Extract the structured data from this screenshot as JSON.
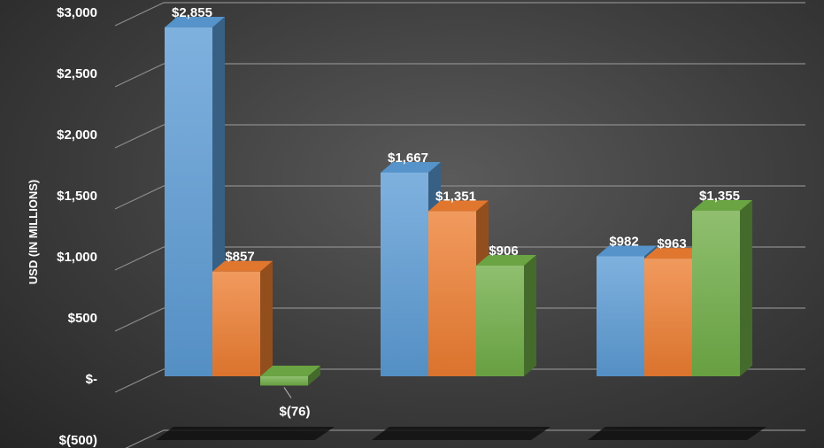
{
  "chart_data": {
    "type": "bar",
    "style": "3d-clustered-column",
    "categories": [
      "",
      "",
      ""
    ],
    "series": [
      {
        "color": "#5b9bd5",
        "values": [
          2855,
          1667,
          982
        ]
      },
      {
        "color": "#ed7d31",
        "values": [
          857,
          1351,
          963
        ]
      },
      {
        "color": "#70ad47",
        "values": [
          -76,
          906,
          1355
        ]
      }
    ],
    "data_labels": [
      [
        "$2,855",
        "$1,667",
        "$982"
      ],
      [
        "$857",
        "$1,351",
        "$963"
      ],
      [
        "$(76)",
        "$906",
        "$1,355"
      ]
    ],
    "y_ticks": [
      {
        "value": -500,
        "label": "$(500)"
      },
      {
        "value": 0,
        "label": "$-"
      },
      {
        "value": 500,
        "label": "$500"
      },
      {
        "value": 1000,
        "label": "$1,000"
      },
      {
        "value": 1500,
        "label": "$1,500"
      },
      {
        "value": 2000,
        "label": "$2,000"
      },
      {
        "value": 2500,
        "label": "$2,500"
      },
      {
        "value": 3000,
        "label": "$3,000"
      }
    ],
    "ylabel": "USD (IN MILLIONS)",
    "ylim": [
      -500,
      3000
    ],
    "grid": true,
    "legend": "none"
  }
}
